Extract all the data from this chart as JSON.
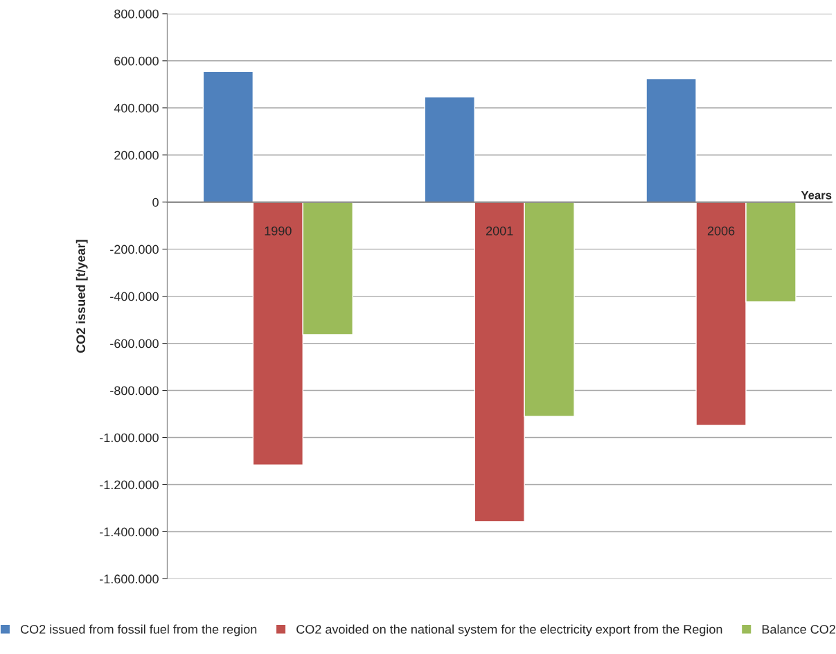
{
  "chart_data": {
    "type": "bar",
    "xlabel": "Years",
    "ylabel": "CO2 issued [t/year]",
    "categories": [
      "1990",
      "2001",
      "2006"
    ],
    "series": [
      {
        "name": "CO2 issued from fossil fuel from the region",
        "color": "#4f81bd",
        "values": [
          554000,
          447000,
          524000
        ]
      },
      {
        "name": "CO2 avoided on the national system for the electricity export from the Region",
        "color": "#c0504d",
        "values": [
          -1117000,
          -1357000,
          -948000
        ]
      },
      {
        "name": "Balance CO2",
        "color": "#9bbb59",
        "values": [
          -563000,
          -910000,
          -424000
        ]
      }
    ],
    "ylim": [
      -1600000,
      800000
    ],
    "yticks": [
      {
        "value": -1600000,
        "label": "-1.600.000"
      },
      {
        "value": -1400000,
        "label": "-1.400.000"
      },
      {
        "value": -1200000,
        "label": "-1.200.000"
      },
      {
        "value": -1000000,
        "label": "-1.000.000"
      },
      {
        "value": -800000,
        "label": "-800.000"
      },
      {
        "value": -600000,
        "label": "-600.000"
      },
      {
        "value": -400000,
        "label": "-400.000"
      },
      {
        "value": -200000,
        "label": "-200.000"
      },
      0,
      {
        "value": 200000,
        "label": "200.000"
      },
      {
        "value": 400000,
        "label": "400.000"
      },
      {
        "value": 600000,
        "label": "600.000"
      },
      {
        "value": 800000,
        "label": "800.000"
      }
    ],
    "grid": "y",
    "legend": "bottom"
  }
}
